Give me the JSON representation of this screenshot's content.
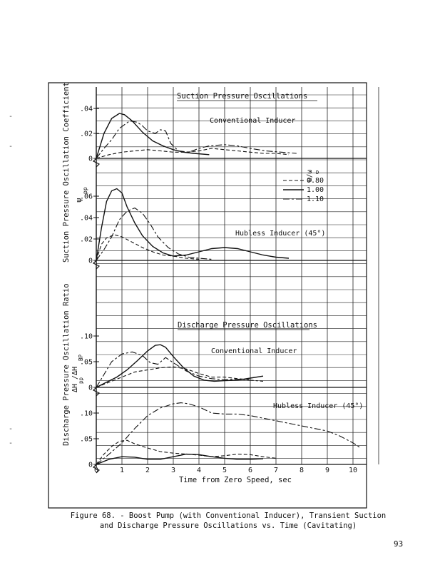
{
  "figure": {
    "caption_line1": "Figure 68. - Boost Pump (with Conventional Inducer), Transient Suction",
    "caption_line2": "and Discharge Pressure Oscillations vs. Time (Cavitating)",
    "page_number": "93",
    "margin_marks": [
      "-",
      "-",
      "-",
      "-"
    ]
  },
  "chart_data": [
    {
      "type": "line",
      "panel": "Suction - Conventional Inducer",
      "title": "Suction Pressure Oscillations",
      "annotation": "Conventional Inducer",
      "ylabel_line1": "Suction Pressure Oscillation Coefficient",
      "ylabel_line2": "ψ",
      "ylabel_sub": "pp",
      "ylim": [
        0,
        0.05
      ],
      "yticks": [
        0,
        0.02,
        0.04
      ],
      "ytick_labels": [
        "0",
        ".02",
        ".04"
      ],
      "series": [
        {
          "style": "dash-long",
          "x": [
            0,
            0.3,
            0.6,
            0.9,
            1.3,
            1.6,
            1.8,
            2.0,
            2.3,
            2.5,
            2.7,
            2.9,
            3.2,
            3.6,
            4.0,
            4.4,
            5.0,
            5.5,
            6.0,
            6.6,
            7.2,
            7.8
          ],
          "y": [
            0,
            0.008,
            0.015,
            0.024,
            0.03,
            0.029,
            0.026,
            0.022,
            0.02,
            0.023,
            0.022,
            0.012,
            0.006,
            0.005,
            0.008,
            0.01,
            0.011,
            0.01,
            0.008,
            0.006,
            0.005,
            0.004
          ]
        },
        {
          "style": "solid",
          "x": [
            0,
            0.3,
            0.6,
            0.9,
            1.1,
            1.4,
            1.8,
            2.2,
            2.6,
            3.0,
            3.4,
            3.8,
            4.4
          ],
          "y": [
            0,
            0.02,
            0.032,
            0.036,
            0.035,
            0.03,
            0.021,
            0.014,
            0.01,
            0.007,
            0.005,
            0.004,
            0.003
          ]
        },
        {
          "style": "dash-short",
          "x": [
            0,
            0.5,
            1.0,
            1.5,
            2.0,
            2.5,
            3.0,
            3.5,
            4.0,
            4.5,
            5.0,
            5.5,
            6.0,
            6.5,
            7.0,
            7.5
          ],
          "y": [
            0,
            0.003,
            0.005,
            0.006,
            0.007,
            0.006,
            0.005,
            0.005,
            0.006,
            0.008,
            0.007,
            0.006,
            0.005,
            0.004,
            0.004,
            0.003
          ]
        }
      ]
    },
    {
      "type": "line",
      "panel": "Suction - Hubless Inducer",
      "annotation": "Hubless Inducer (45°)",
      "legend_title": "ω/ω",
      "legend_title_sub": "D",
      "legend": [
        {
          "style": "dash-short",
          "label": "0.80"
        },
        {
          "style": "solid",
          "label": "1.00"
        },
        {
          "style": "dash-long",
          "label": "1.10"
        }
      ],
      "ylim": [
        0,
        0.07
      ],
      "yticks": [
        0,
        0.02,
        0.04,
        0.06
      ],
      "ytick_labels": [
        "0",
        ".02",
        ".04",
        ".06"
      ],
      "series": [
        {
          "style": "dash-short",
          "x": [
            0,
            0.2,
            0.4,
            0.7,
            1.0,
            1.4,
            1.8,
            2.2,
            2.6,
            3.0,
            3.5,
            4.0
          ],
          "y": [
            0,
            0.015,
            0.021,
            0.024,
            0.022,
            0.017,
            0.012,
            0.008,
            0.005,
            0.004,
            0.002,
            0.001
          ]
        },
        {
          "style": "solid",
          "x": [
            0,
            0.2,
            0.4,
            0.6,
            0.8,
            1.0,
            1.2,
            1.5,
            1.8,
            2.2,
            2.6,
            3.0,
            3.5,
            4.0,
            4.5,
            5.0,
            5.5,
            6.0,
            6.5,
            7.0,
            7.5
          ],
          "y": [
            0,
            0.03,
            0.055,
            0.065,
            0.067,
            0.063,
            0.05,
            0.035,
            0.023,
            0.013,
            0.007,
            0.004,
            0.005,
            0.008,
            0.011,
            0.012,
            0.011,
            0.008,
            0.005,
            0.003,
            0.002
          ]
        },
        {
          "style": "dash-long",
          "x": [
            0,
            0.3,
            0.6,
            0.9,
            1.2,
            1.5,
            1.8,
            2.1,
            2.4,
            2.8,
            3.2,
            3.6,
            4.0,
            4.5
          ],
          "y": [
            0,
            0.01,
            0.022,
            0.038,
            0.046,
            0.049,
            0.044,
            0.034,
            0.022,
            0.012,
            0.006,
            0.003,
            0.002,
            0.001
          ]
        }
      ]
    },
    {
      "type": "line",
      "panel": "Discharge - Conventional Inducer",
      "title": "Discharge Pressure Oscillations",
      "annotation": "Conventional Inducer",
      "ylabel_line1": "Discharge Pressure Oscillation Ratio",
      "ylabel_line2": "ΔH  /ΔH",
      "ylabel_sub1": "pp",
      "ylabel_sub2": "BP",
      "ylim": [
        0,
        0.12
      ],
      "yticks": [
        0,
        0.05,
        0.1
      ],
      "ytick_labels": [
        "0",
        ".05",
        ".10"
      ],
      "series": [
        {
          "style": "dash-long",
          "x": [
            0,
            0.3,
            0.6,
            1.0,
            1.4,
            1.8,
            2.1,
            2.4,
            2.7,
            3.0,
            3.5,
            4.0,
            4.5,
            5.0,
            5.5,
            6.0,
            6.5
          ],
          "y": [
            0,
            0.025,
            0.05,
            0.065,
            0.069,
            0.062,
            0.048,
            0.045,
            0.058,
            0.048,
            0.032,
            0.022,
            0.017,
            0.015,
            0.016,
            0.014,
            0.012
          ]
        },
        {
          "style": "solid",
          "x": [
            0,
            0.4,
            0.8,
            1.2,
            1.6,
            2.0,
            2.3,
            2.5,
            2.7,
            3.0,
            3.4,
            3.8,
            4.2,
            4.6,
            5.0,
            5.5,
            6.0,
            6.5
          ],
          "y": [
            0,
            0.01,
            0.02,
            0.034,
            0.052,
            0.071,
            0.082,
            0.083,
            0.078,
            0.06,
            0.038,
            0.022,
            0.014,
            0.012,
            0.013,
            0.014,
            0.018,
            0.022
          ]
        },
        {
          "style": "dash-short",
          "x": [
            0,
            0.5,
            1.0,
            1.5,
            2.0,
            2.5,
            3.0,
            3.5,
            4.0,
            4.5,
            5.0,
            5.5,
            6.0
          ],
          "y": [
            0,
            0.01,
            0.02,
            0.03,
            0.034,
            0.038,
            0.04,
            0.036,
            0.027,
            0.02,
            0.02,
            0.017,
            0.015
          ]
        }
      ]
    },
    {
      "type": "line",
      "panel": "Discharge - Hubless Inducer",
      "annotation": "Hubless Inducer (45°)",
      "xlabel": "Time from Zero Speed, sec",
      "xlim": [
        0,
        11
      ],
      "xticks": [
        0,
        1,
        2,
        3,
        4,
        5,
        6,
        7,
        8,
        9,
        10
      ],
      "xtick_labels": [
        "0",
        "1",
        "2",
        "3",
        "4",
        "5",
        "6",
        "7",
        "8",
        "9",
        "10"
      ],
      "ylim": [
        0,
        0.15
      ],
      "yticks": [
        0,
        0.05,
        0.1
      ],
      "ytick_labels": [
        "0",
        ".05",
        ".10"
      ],
      "series": [
        {
          "style": "dash-long",
          "x": [
            0,
            0.5,
            1.0,
            1.5,
            2.0,
            2.5,
            3.0,
            3.3,
            3.6,
            4.0,
            4.5,
            5.0,
            5.5,
            6.0,
            7.0,
            8.0,
            9.0,
            9.5,
            10.0,
            10.3
          ],
          "y": [
            0,
            0.02,
            0.042,
            0.07,
            0.095,
            0.11,
            0.118,
            0.12,
            0.118,
            0.112,
            0.1,
            0.098,
            0.098,
            0.095,
            0.085,
            0.075,
            0.065,
            0.055,
            0.042,
            0.032
          ]
        },
        {
          "style": "dash-short",
          "x": [
            0,
            0.3,
            0.6,
            0.9,
            1.2,
            1.5,
            2.0,
            2.5,
            3.0,
            3.5,
            4.0,
            4.5,
            5.0,
            5.5,
            6.0,
            6.5,
            7.0
          ],
          "y": [
            0,
            0.02,
            0.035,
            0.045,
            0.047,
            0.04,
            0.032,
            0.025,
            0.022,
            0.02,
            0.018,
            0.015,
            0.017,
            0.02,
            0.019,
            0.015,
            0.012
          ]
        },
        {
          "style": "solid",
          "x": [
            0,
            0.5,
            1.0,
            1.5,
            2.0,
            2.5,
            3.0,
            3.5,
            4.0,
            4.5,
            5.0,
            5.5,
            6.0,
            6.5
          ],
          "y": [
            0,
            0.01,
            0.015,
            0.014,
            0.01,
            0.01,
            0.015,
            0.02,
            0.019,
            0.015,
            0.012,
            0.01,
            0.01,
            0.011
          ]
        }
      ]
    }
  ]
}
